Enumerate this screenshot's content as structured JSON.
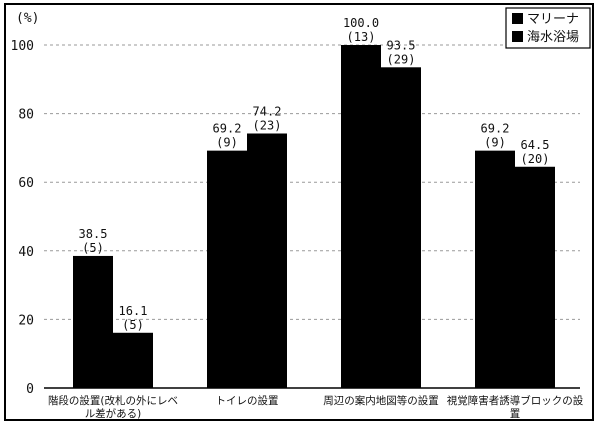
{
  "chart_data": {
    "type": "bar",
    "unit_label": "(%)",
    "categories": [
      [
        "階段の設置(改札の外にレベ",
        "ル差がある)"
      ],
      [
        "トイレの設置"
      ],
      [
        "周辺の案内地図等の設置"
      ],
      [
        "視覚障害者誘導ブロックの設",
        "置"
      ]
    ],
    "series": [
      {
        "name": "マリーナ",
        "values": [
          38.5,
          69.2,
          100.0,
          69.2
        ],
        "value_labels": [
          "38.5",
          "69.2",
          "100.0",
          "69.2"
        ],
        "counts": [
          "(5)",
          "(9)",
          "(13)",
          "(9)"
        ]
      },
      {
        "name": "海水浴場",
        "values": [
          16.1,
          74.2,
          93.5,
          64.5
        ],
        "value_labels": [
          "16.1",
          "74.2",
          "93.5",
          "64.5"
        ],
        "counts": [
          "(5)",
          "(23)",
          "(29)",
          "(20)"
        ]
      }
    ],
    "ylim": [
      0,
      100
    ],
    "yticks": [
      "0",
      "20",
      "40",
      "60",
      "80",
      "100"
    ],
    "grid": true,
    "legend": "top-right",
    "colors": {
      "bar": "#000000",
      "grid": "#9a9a9a",
      "axis": "#000000"
    }
  }
}
